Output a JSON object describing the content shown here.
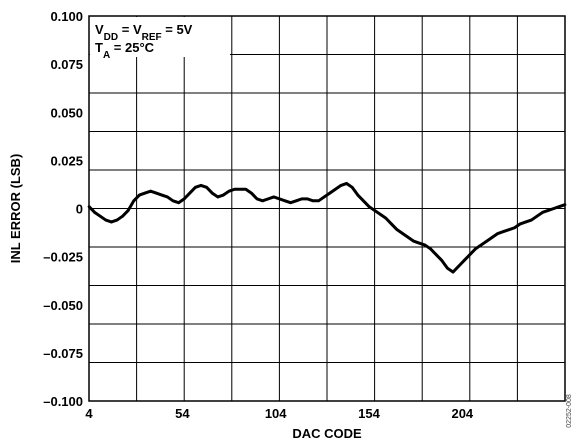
{
  "chart_data": {
    "type": "line",
    "xlabel": "DAC CODE",
    "ylabel": "INL ERROR (LSB)",
    "xlim": [
      4,
      259
    ],
    "ylim": [
      -0.1,
      0.1
    ],
    "x_ticks": [
      4,
      54,
      104,
      154,
      204
    ],
    "x_tick_labels": [
      "4",
      "54",
      "104",
      "154",
      "204"
    ],
    "y_ticks": [
      0.1,
      0.075,
      0.05,
      0.025,
      0,
      -0.025,
      -0.05,
      -0.075,
      -0.1
    ],
    "y_tick_labels": [
      "0.100",
      "0.075",
      "0.050",
      "0.025",
      "0",
      "–0.025",
      "–0.050",
      "–0.075",
      "–0.100"
    ],
    "x_grid_count": 10,
    "y_grid_count": 10,
    "grid": true,
    "annotation": {
      "line1": {
        "v": "V",
        "sub1": "DD",
        "mid": " = V",
        "sub2": "REF",
        "end": " = 5V"
      },
      "line2": {
        "t": "T",
        "sub": "A",
        "end": " = 25°C"
      }
    },
    "side_code": "02252-008",
    "series": [
      {
        "x": [
          4,
          7,
          10,
          13,
          16,
          19,
          22,
          25,
          28,
          31,
          34,
          37,
          40,
          43,
          46,
          49,
          52,
          55,
          58,
          61,
          64,
          67,
          70,
          73,
          76,
          79,
          82,
          85,
          88,
          91,
          94,
          97,
          100,
          103,
          106,
          109,
          112,
          115,
          118,
          121,
          124,
          127,
          130,
          133,
          136,
          139,
          142,
          145,
          148,
          151,
          154,
          157,
          160,
          163,
          166,
          169,
          172,
          175,
          178,
          181,
          184,
          187,
          190,
          193,
          196,
          199,
          202,
          205,
          208,
          211,
          214,
          217,
          220,
          223,
          226,
          229,
          232,
          235,
          238,
          241,
          244,
          247,
          250,
          253,
          256,
          259
        ],
        "y": [
          0.001,
          -0.002,
          -0.004,
          -0.006,
          -0.007,
          -0.006,
          -0.004,
          -0.001,
          0.004,
          0.007,
          0.008,
          0.009,
          0.008,
          0.007,
          0.006,
          0.004,
          0.003,
          0.005,
          0.008,
          0.011,
          0.012,
          0.011,
          0.008,
          0.006,
          0.007,
          0.009,
          0.01,
          0.01,
          0.01,
          0.008,
          0.005,
          0.004,
          0.005,
          0.006,
          0.005,
          0.004,
          0.003,
          0.004,
          0.005,
          0.005,
          0.004,
          0.004,
          0.006,
          0.008,
          0.01,
          0.012,
          0.013,
          0.011,
          0.007,
          0.004,
          0.001,
          -0.001,
          -0.003,
          -0.005,
          -0.008,
          -0.011,
          -0.013,
          -0.015,
          -0.017,
          -0.018,
          -0.019,
          -0.021,
          -0.024,
          -0.027,
          -0.031,
          -0.033,
          -0.03,
          -0.027,
          -0.024,
          -0.021,
          -0.019,
          -0.017,
          -0.015,
          -0.013,
          -0.012,
          -0.011,
          -0.01,
          -0.008,
          -0.007,
          -0.006,
          -0.004,
          -0.002,
          -0.001,
          0.0,
          0.001,
          0.002
        ]
      }
    ]
  }
}
